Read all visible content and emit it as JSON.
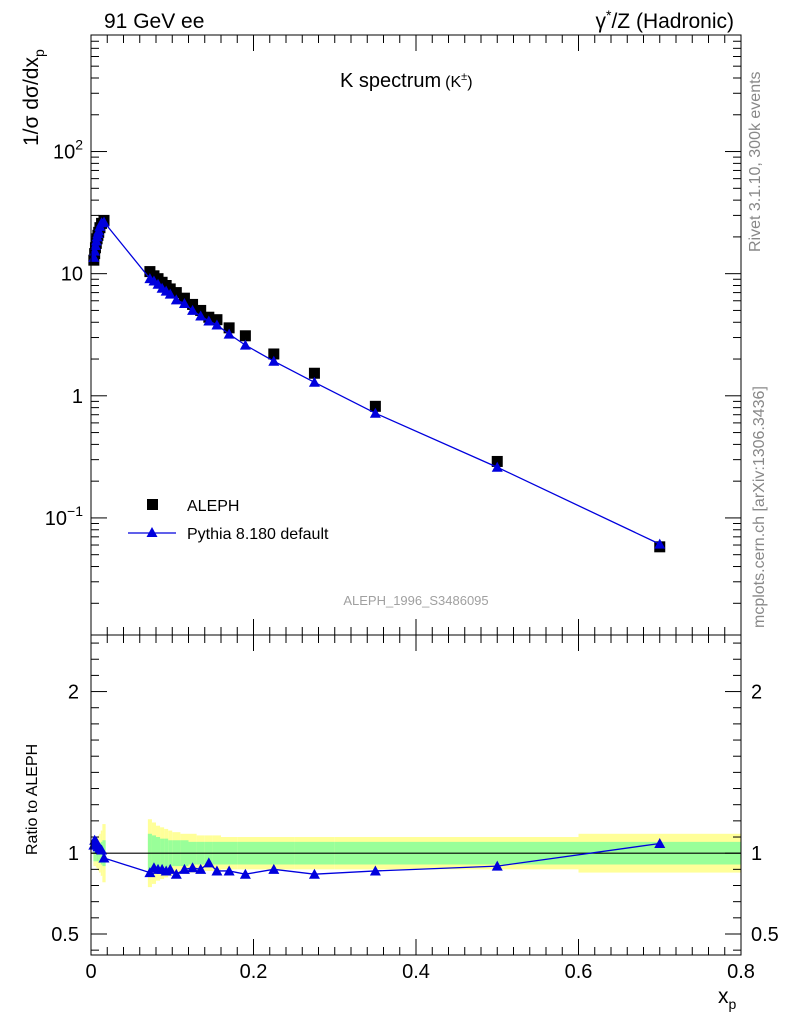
{
  "header": {
    "left": "91 GeV ee",
    "right_greek": "γ",
    "right_sup": "*",
    "right_rest": "/Z (Hadronic)"
  },
  "chart_data": [
    {
      "type": "scatter",
      "title": "K spectrum",
      "title_sub": "(K",
      "title_sub_sup": "±",
      "title_sub_close": ")",
      "ylabel": "1/σ dσ/dx",
      "ylabel_sub": "p",
      "xlabel": "x",
      "xlabel_sub": "p",
      "yscale": "log",
      "ylim": [
        0.011,
        900
      ],
      "xlim": [
        0,
        0.8
      ],
      "yticks": [
        {
          "v": 0.1,
          "base": "10",
          "exp": "−1"
        },
        {
          "v": 1,
          "label": "1"
        },
        {
          "v": 10,
          "label": "10"
        },
        {
          "v": 100,
          "base": "10",
          "exp": "2"
        }
      ],
      "watermark": "ALEPH_1996_S3486095",
      "legend": {
        "position": "lower-left",
        "entries": [
          "ALEPH",
          "Pythia 8.180 default"
        ]
      },
      "colors": {
        "data": "#000000",
        "mc": "#0000dd"
      },
      "series": [
        {
          "name": "ALEPH",
          "x": [
            0.0035,
            0.0045,
            0.0055,
            0.0065,
            0.0075,
            0.0085,
            0.0095,
            0.011,
            0.013,
            0.016,
            0.0725,
            0.0775,
            0.0825,
            0.0875,
            0.0925,
            0.0975,
            0.105,
            0.115,
            0.125,
            0.135,
            0.145,
            0.155,
            0.17,
            0.19,
            0.225,
            0.275,
            0.35,
            0.5,
            0.7
          ],
          "values": [
            12.9,
            14.6,
            16.3,
            17.7,
            19.3,
            20.6,
            21.8,
            23.8,
            25.8,
            27.3,
            10.4,
            9.6,
            9.1,
            8.5,
            8.0,
            7.5,
            7.0,
            6.3,
            5.6,
            5.0,
            4.4,
            4.2,
            3.6,
            3.1,
            2.2,
            1.53,
            0.82,
            0.29,
            0.058
          ]
        },
        {
          "name": "Pythia 8.180 default",
          "x": [
            0.0035,
            0.0045,
            0.0055,
            0.0065,
            0.0075,
            0.0085,
            0.0095,
            0.011,
            0.013,
            0.016,
            0.0725,
            0.0775,
            0.0825,
            0.0875,
            0.0925,
            0.0975,
            0.105,
            0.115,
            0.125,
            0.135,
            0.145,
            0.155,
            0.17,
            0.19,
            0.225,
            0.275,
            0.35,
            0.5,
            0.7
          ],
          "values": [
            13.6,
            15.3,
            17.0,
            18.5,
            20.0,
            21.3,
            22.4,
            24.4,
            26.1,
            26.5,
            9.1,
            8.7,
            8.2,
            7.6,
            7.2,
            6.8,
            6.1,
            5.7,
            5.0,
            4.5,
            4.1,
            3.8,
            3.2,
            2.6,
            1.92,
            1.29,
            0.72,
            0.26,
            0.061
          ]
        }
      ]
    },
    {
      "type": "line",
      "ylabel": "Ratio to ALEPH",
      "ylim": [
        0.37,
        2.35
      ],
      "xlim": [
        0,
        0.8
      ],
      "xticks": [
        "0",
        "0.2",
        "0.4",
        "0.6",
        "0.8"
      ],
      "yticks_labels": [
        "0.5",
        "1",
        "2"
      ],
      "colors": {
        "band_inner": "#99ff99",
        "band_outer": "#ffff99",
        "mc": "#0000dd",
        "ref_line": "#000000"
      },
      "band_bins": [
        {
          "x": [
            0.003,
            0.004
          ],
          "inner": 0.05,
          "outer": 0.08
        },
        {
          "x": [
            0.004,
            0.005
          ],
          "inner": 0.05,
          "outer": 0.08
        },
        {
          "x": [
            0.005,
            0.006
          ],
          "inner": 0.05,
          "outer": 0.08
        },
        {
          "x": [
            0.006,
            0.007
          ],
          "inner": 0.05,
          "outer": 0.09
        },
        {
          "x": [
            0.007,
            0.008
          ],
          "inner": 0.05,
          "outer": 0.09
        },
        {
          "x": [
            0.008,
            0.009
          ],
          "inner": 0.05,
          "outer": 0.1
        },
        {
          "x": [
            0.009,
            0.01
          ],
          "inner": 0.06,
          "outer": 0.11
        },
        {
          "x": [
            0.01,
            0.012
          ],
          "inner": 0.06,
          "outer": 0.12
        },
        {
          "x": [
            0.012,
            0.014
          ],
          "inner": 0.07,
          "outer": 0.14
        },
        {
          "x": [
            0.014,
            0.018
          ],
          "inner": 0.08,
          "outer": 0.18
        },
        {
          "x": [
            0.07,
            0.075
          ],
          "inner": 0.12,
          "outer": 0.21
        },
        {
          "x": [
            0.075,
            0.08
          ],
          "inner": 0.11,
          "outer": 0.19
        },
        {
          "x": [
            0.08,
            0.085
          ],
          "inner": 0.1,
          "outer": 0.17
        },
        {
          "x": [
            0.085,
            0.09
          ],
          "inner": 0.09,
          "outer": 0.16
        },
        {
          "x": [
            0.09,
            0.095
          ],
          "inner": 0.09,
          "outer": 0.15
        },
        {
          "x": [
            0.095,
            0.1
          ],
          "inner": 0.08,
          "outer": 0.14
        },
        {
          "x": [
            0.1,
            0.11
          ],
          "inner": 0.08,
          "outer": 0.13
        },
        {
          "x": [
            0.11,
            0.12
          ],
          "inner": 0.08,
          "outer": 0.12
        },
        {
          "x": [
            0.12,
            0.13
          ],
          "inner": 0.07,
          "outer": 0.12
        },
        {
          "x": [
            0.13,
            0.14
          ],
          "inner": 0.07,
          "outer": 0.11
        },
        {
          "x": [
            0.14,
            0.15
          ],
          "inner": 0.07,
          "outer": 0.11
        },
        {
          "x": [
            0.15,
            0.16
          ],
          "inner": 0.07,
          "outer": 0.11
        },
        {
          "x": [
            0.16,
            0.18
          ],
          "inner": 0.07,
          "outer": 0.1
        },
        {
          "x": [
            0.18,
            0.2
          ],
          "inner": 0.07,
          "outer": 0.1
        },
        {
          "x": [
            0.2,
            0.25
          ],
          "inner": 0.07,
          "outer": 0.1
        },
        {
          "x": [
            0.25,
            0.3
          ],
          "inner": 0.07,
          "outer": 0.1
        },
        {
          "x": [
            0.3,
            0.4
          ],
          "inner": 0.07,
          "outer": 0.1
        },
        {
          "x": [
            0.4,
            0.6
          ],
          "inner": 0.07,
          "outer": 0.1
        },
        {
          "x": [
            0.6,
            0.8
          ],
          "inner": 0.07,
          "outer": 0.12
        }
      ],
      "series": [
        {
          "name": "Pythia 8.180 default",
          "x": [
            0.0035,
            0.0045,
            0.0055,
            0.0065,
            0.0075,
            0.0085,
            0.0095,
            0.011,
            0.013,
            0.016,
            0.0725,
            0.0775,
            0.0825,
            0.0875,
            0.0925,
            0.0975,
            0.105,
            0.115,
            0.125,
            0.135,
            0.145,
            0.155,
            0.17,
            0.19,
            0.225,
            0.275,
            0.35,
            0.5,
            0.7
          ],
          "values": [
            1.05,
            1.08,
            1.06,
            1.07,
            1.05,
            1.04,
            1.04,
            1.03,
            1.02,
            0.97,
            0.88,
            0.91,
            0.9,
            0.9,
            0.89,
            0.9,
            0.87,
            0.9,
            0.91,
            0.9,
            0.94,
            0.89,
            0.89,
            0.87,
            0.9,
            0.87,
            0.89,
            0.92,
            1.06
          ]
        }
      ]
    }
  ],
  "side": {
    "rivet": "Rivet 3.1.10,  300k events",
    "mcplots": "mcplots.cern.ch [arXiv:1306.3436]"
  }
}
